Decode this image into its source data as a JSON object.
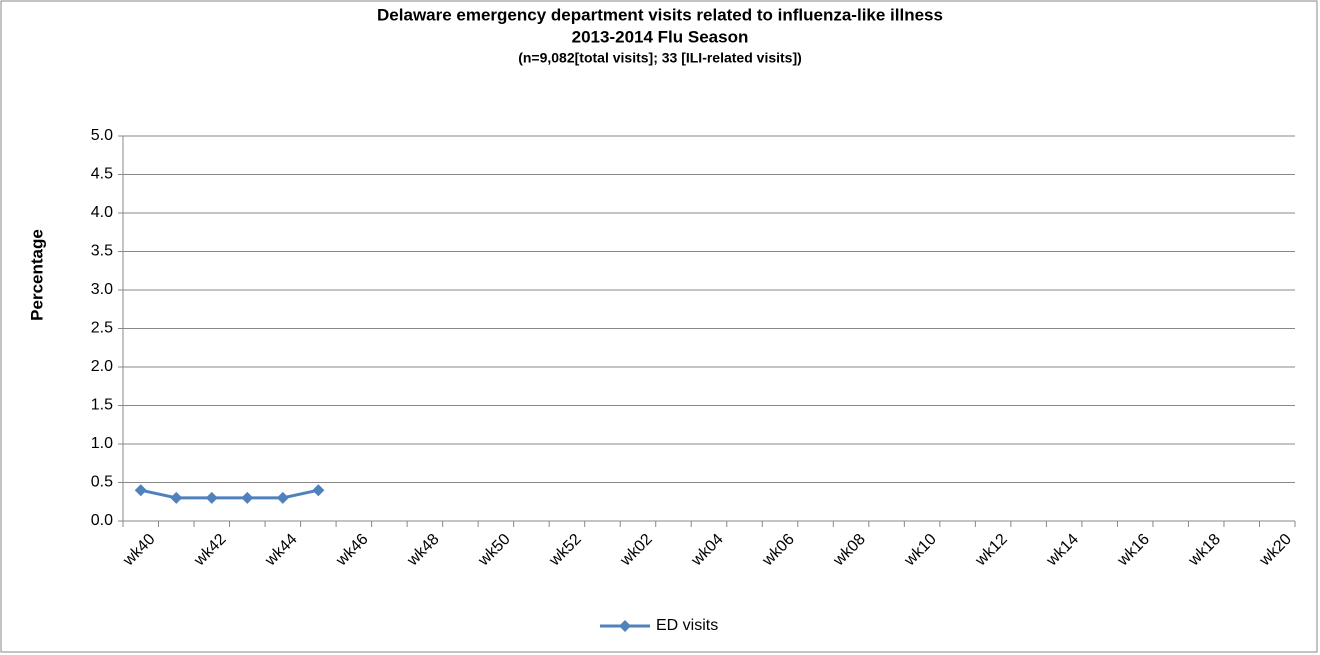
{
  "chart_data": {
    "type": "line",
    "title": "Delaware emergency department visits related to influenza-like illness",
    "subtitle": "2013-2014 Flu Season",
    "annotation": "(n=9,082[total visits]; 33 [ILI-related visits])",
    "y_label": "Percentage",
    "categories": [
      "wk40",
      null,
      "wk42",
      null,
      "wk44",
      null,
      "wk46",
      null,
      "wk48",
      null,
      "wk50",
      null,
      "wk52",
      null,
      "wk02",
      null,
      "wk04",
      null,
      "wk06",
      null,
      "wk08",
      null,
      "wk10",
      null,
      "wk12",
      null,
      "wk14",
      null,
      "wk16",
      null,
      "wk18",
      null,
      "wk20"
    ],
    "series": [
      {
        "name": "ED visits",
        "color": "#4f81bd",
        "values": [
          0.4,
          0.3,
          0.3,
          0.3,
          0.3,
          0.4,
          null,
          null,
          null,
          null,
          null,
          null,
          null,
          null,
          null,
          null,
          null,
          null,
          null,
          null,
          null,
          null,
          null,
          null,
          null,
          null,
          null,
          null,
          null,
          null,
          null,
          null,
          null
        ]
      }
    ],
    "ylim": [
      0,
      5
    ],
    "yticks": [
      {
        "value": 0,
        "label": "0.0"
      },
      0.5,
      {
        "value": 1,
        "label": "1.0"
      },
      1.5,
      {
        "value": 2,
        "label": "2.0"
      },
      2.5,
      {
        "value": 3,
        "label": "3.0"
      },
      3.5,
      {
        "value": 4,
        "label": "4.0"
      },
      4.5,
      {
        "value": 5,
        "label": "5.0"
      }
    ],
    "grid": true,
    "legend": "bottom"
  }
}
